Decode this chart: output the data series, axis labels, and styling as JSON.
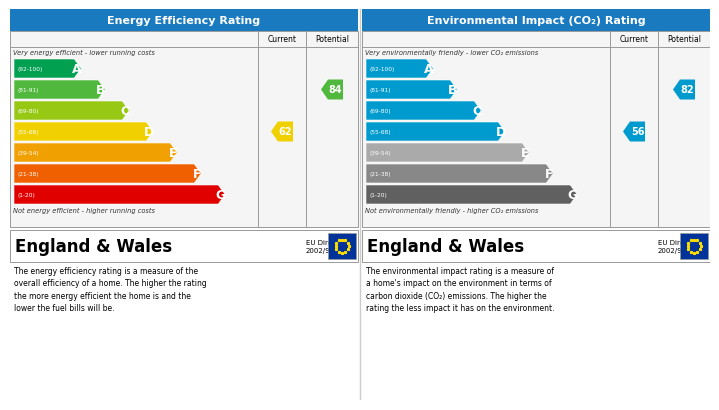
{
  "left_title": "Energy Efficiency Rating",
  "right_title": "Environmental Impact (CO₂) Rating",
  "title_bg": "#1a7abf",
  "title_color": "#ffffff",
  "bands": [
    {
      "label": "A",
      "range": "(92-100)",
      "epc_color": "#00a050",
      "co2_color": "#009bce"
    },
    {
      "label": "B",
      "range": "(81-91)",
      "epc_color": "#50b83c",
      "co2_color": "#009bce"
    },
    {
      "label": "C",
      "range": "(69-80)",
      "epc_color": "#96c814",
      "co2_color": "#009bce"
    },
    {
      "label": "D",
      "range": "(55-68)",
      "epc_color": "#f0d000",
      "co2_color": "#009bce"
    },
    {
      "label": "E",
      "range": "(39-54)",
      "epc_color": "#f0a000",
      "co2_color": "#aaaaaa"
    },
    {
      "label": "F",
      "range": "(21-38)",
      "epc_color": "#f06000",
      "co2_color": "#888888"
    },
    {
      "label": "G",
      "range": "(1-20)",
      "epc_color": "#e00000",
      "co2_color": "#606060"
    }
  ],
  "current_epc": 62,
  "potential_epc": 84,
  "current_epc_band_idx": 3,
  "potential_epc_band_idx": 1,
  "current_epc_color": "#f0d000",
  "potential_epc_color": "#50b83c",
  "current_co2": 56,
  "potential_co2": 82,
  "current_co2_band_idx": 3,
  "potential_co2_band_idx": 1,
  "current_co2_color": "#009bce",
  "potential_co2_color": "#009bce",
  "header_top_text_epc": "Very energy efficient - lower running costs",
  "header_bot_text_epc": "Not energy efficient - higher running costs",
  "header_top_text_co2": "Very environmentally friendly - lower CO₂ emissions",
  "header_bot_text_co2": "Not environmentally friendly - higher CO₂ emissions",
  "footer_text_epc": "The energy efficiency rating is a measure of the\noverall efficiency of a home. The higher the rating\nthe more energy efficient the home is and the\nlower the fuel bills will be.",
  "footer_text_co2": "The environmental impact rating is a measure of\na home's impact on the environment in terms of\ncarbon dioxide (CO₂) emissions. The higher the\nrating the less impact it has on the environment.",
  "eu_text": "EU Directive\n2002/91/EC",
  "region_text": "England & Wales",
  "bg_color": "#ffffff"
}
